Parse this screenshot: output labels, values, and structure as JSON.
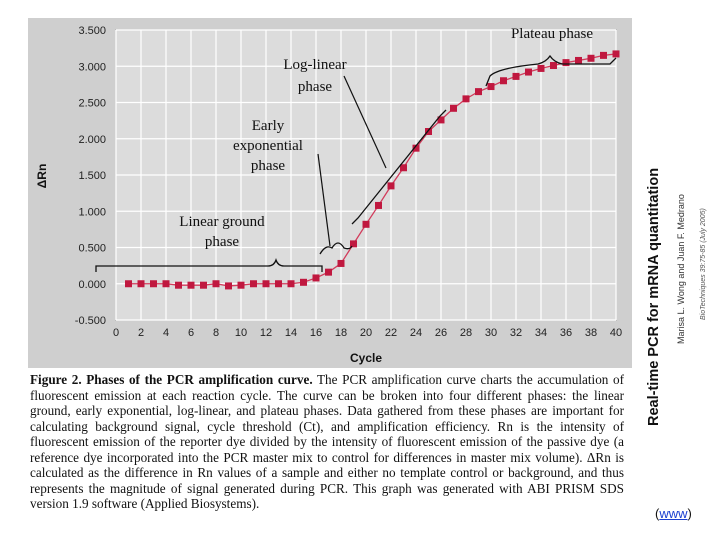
{
  "chart_data": {
    "type": "scatter",
    "xlabel": "Cycle",
    "ylabel": "ΔRn",
    "xlim": [
      0,
      40
    ],
    "ylim": [
      -0.5,
      3.5
    ],
    "x_ticks": [
      "0",
      "2",
      "4",
      "6",
      "8",
      "10",
      "12",
      "14",
      "16",
      "18",
      "20",
      "22",
      "24",
      "26",
      "28",
      "30",
      "32",
      "34",
      "36",
      "38",
      "40"
    ],
    "y_ticks": [
      "3.500",
      "3.000",
      "2.500",
      "2.000",
      "1.500",
      "1.000",
      "0.500",
      "0.000",
      "-0.500"
    ],
    "grid": true,
    "series": [
      {
        "x": [
          1,
          2,
          3,
          4,
          5,
          6,
          7,
          8,
          9,
          10,
          11,
          12,
          13,
          14,
          15,
          16,
          17,
          18,
          19,
          20,
          21,
          22,
          23,
          24,
          25,
          26,
          27,
          28,
          29,
          30,
          31,
          32,
          33,
          34,
          35,
          36,
          37,
          38,
          39,
          40
        ],
        "values": [
          0.0,
          0.0,
          0.0,
          0.0,
          -0.02,
          -0.02,
          -0.02,
          0.0,
          -0.03,
          -0.02,
          0.0,
          0.0,
          0.0,
          0.0,
          0.02,
          0.08,
          0.16,
          0.28,
          0.55,
          0.82,
          1.08,
          1.35,
          1.6,
          1.87,
          2.1,
          2.26,
          2.42,
          2.55,
          2.65,
          2.72,
          2.8,
          2.86,
          2.92,
          2.97,
          3.01,
          3.05,
          3.08,
          3.11,
          3.15,
          3.17
        ]
      }
    ],
    "colors": {
      "points": "#c0183f",
      "line": "#d23b5b",
      "background": "#cfcfcf",
      "grid": "#ffffff"
    },
    "annotations": [
      {
        "text": "Plateau phase"
      },
      {
        "text": "Log-linear"
      },
      {
        "text": "phase"
      },
      {
        "text": "Early"
      },
      {
        "text": "exponential"
      },
      {
        "text": "phase"
      },
      {
        "text": "Linear ground"
      },
      {
        "text": "phase"
      }
    ]
  },
  "caption": {
    "lead": "Figure 2. Phases of the PCR amplification curve.",
    "body": " The PCR amplification curve charts the accumulation of fluorescent emission at each reaction cycle. The curve can be broken into four different phases: the linear ground, early exponential, log-linear, and plateau phases. Data gathered from these phases are important for calculating background signal, cycle threshold (Ct), and amplification efficiency. Rn is the intensity of fluorescent emission of the reporter dye divided by the intensity of fluorescent emission of the passive dye (a reference dye incorporated into the PCR master mix to control for differences in master mix volume). ΔRn is calculated as the difference in Rn values of a sample and either no template control or background, and thus represents the magnitude of signal generated during PCR. This graph was generated with ABI PRISM SDS version 1.9 software (Applied Biosystems)."
  },
  "side": {
    "title": "Real-time PCR for mRNA quantitation",
    "authors": "Marisa L. Wong and Juan F. Medrano",
    "journal": "BioTechniques 39:75-85 (July 2005)"
  },
  "link": {
    "open": "(",
    "text": "www",
    "close": ")"
  }
}
